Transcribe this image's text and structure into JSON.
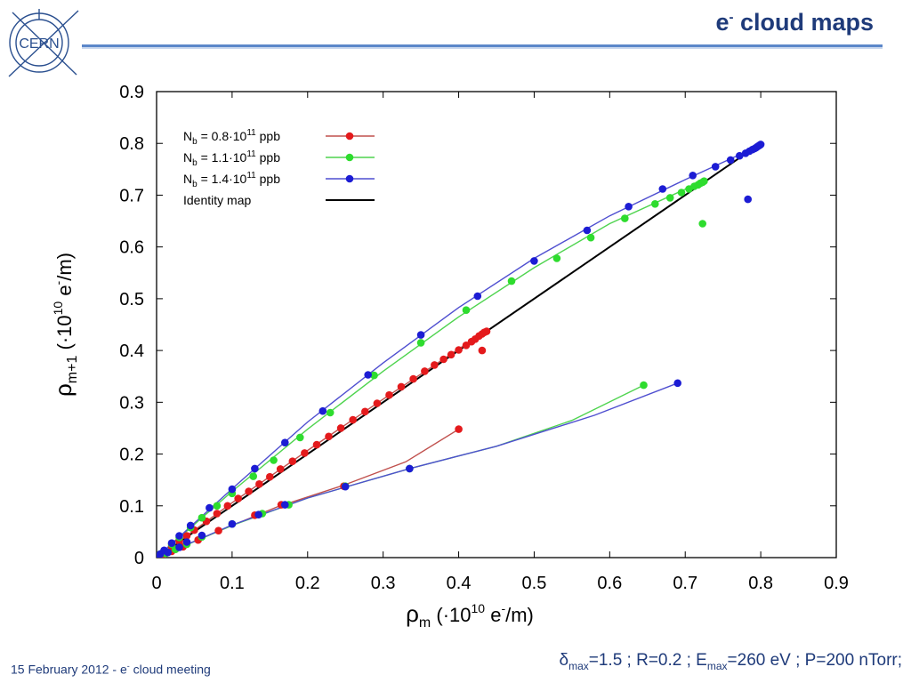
{
  "slide": {
    "logo_text": "CERN",
    "title_main": "e",
    "title_sup": "-",
    "title_rest": " cloud maps",
    "footer_date": "15 February 2012",
    "footer_sep": " - ",
    "footer_e": "e",
    "footer_sup": "-",
    "footer_rest": " cloud meeting",
    "params_delta": "δ",
    "params_sub1": "max",
    "params_mid": "=1.5 ; R=0.2 ; E",
    "params_sub2": "max",
    "params_end": "=260 eV ; P=200 nTorr;"
  },
  "colors": {
    "title": "#1f3b7a",
    "rule": "#5b87c9",
    "red": "#e41a1c",
    "green": "#2edc2e",
    "blue": "#1c1cd4",
    "fit_red": "#c0504d",
    "fit_green": "#4fd44f",
    "fit_blue": "#4f4fd0",
    "identity": "#000000"
  },
  "chart_data": {
    "type": "scatter",
    "title": "",
    "xlabel_rho": "ρ",
    "xlabel_sub": "m",
    "xlabel_rest": " (·10",
    "xlabel_sup": "10",
    "xlabel_unit": " e",
    "xlabel_unit_sup": "-",
    "xlabel_end": "/m)",
    "ylabel_rho": "ρ",
    "ylabel_sub": "m+1",
    "ylabel_rest": " (·10",
    "ylabel_sup": "10",
    "ylabel_unit": " e",
    "ylabel_unit_sup": "-",
    "ylabel_end": "/m)",
    "xlim": [
      0,
      0.9
    ],
    "ylim": [
      0,
      0.9
    ],
    "xticks": [
      "0",
      "0.1",
      "0.2",
      "0.3",
      "0.4",
      "0.5",
      "0.6",
      "0.7",
      "0.8",
      "0.9"
    ],
    "yticks": [
      "0",
      "0.1",
      "0.2",
      "0.3",
      "0.4",
      "0.5",
      "0.6",
      "0.7",
      "0.8",
      "0.9"
    ],
    "grid": false,
    "legend_position": "top-left",
    "series": [
      {
        "name_pre": "N",
        "name_sub": "b",
        "name_mid": " = 0.8·10",
        "name_sup": "11",
        "name_end": " ppb",
        "color_key": "red",
        "upper_points": [
          [
            0,
            0
          ],
          [
            0.005,
            0.006
          ],
          [
            0.01,
            0.011
          ],
          [
            0.02,
            0.022
          ],
          [
            0.03,
            0.032
          ],
          [
            0.04,
            0.042
          ],
          [
            0.05,
            0.053
          ],
          [
            0.066,
            0.07
          ],
          [
            0.08,
            0.085
          ],
          [
            0.094,
            0.1
          ],
          [
            0.108,
            0.114
          ],
          [
            0.122,
            0.128
          ],
          [
            0.136,
            0.142
          ],
          [
            0.15,
            0.156
          ],
          [
            0.164,
            0.171
          ],
          [
            0.18,
            0.186
          ],
          [
            0.196,
            0.202
          ],
          [
            0.212,
            0.218
          ],
          [
            0.228,
            0.234
          ],
          [
            0.244,
            0.25
          ],
          [
            0.26,
            0.266
          ],
          [
            0.276,
            0.282
          ],
          [
            0.292,
            0.298
          ],
          [
            0.308,
            0.314
          ],
          [
            0.324,
            0.33
          ],
          [
            0.34,
            0.345
          ],
          [
            0.355,
            0.36
          ],
          [
            0.368,
            0.372
          ],
          [
            0.38,
            0.383
          ],
          [
            0.39,
            0.392
          ],
          [
            0.4,
            0.401
          ],
          [
            0.41,
            0.41
          ],
          [
            0.417,
            0.417
          ],
          [
            0.422,
            0.422
          ],
          [
            0.427,
            0.428
          ],
          [
            0.431,
            0.432
          ],
          [
            0.434,
            0.435
          ],
          [
            0.437,
            0.437
          ],
          [
            0.431,
            0.4
          ]
        ],
        "lower_points": [
          [
            0,
            0
          ],
          [
            0.01,
            0.006
          ],
          [
            0.02,
            0.012
          ],
          [
            0.035,
            0.021
          ],
          [
            0.055,
            0.034
          ],
          [
            0.082,
            0.052
          ],
          [
            0.13,
            0.082
          ],
          [
            0.165,
            0.102
          ],
          [
            0.248,
            0.138
          ],
          [
            0.4,
            0.248
          ]
        ]
      },
      {
        "name_pre": "N",
        "name_sub": "b",
        "name_mid": " = 1.1·10",
        "name_sup": "11",
        "name_end": " ppb",
        "color_key": "green",
        "upper_points": [
          [
            0,
            0
          ],
          [
            0.005,
            0.007
          ],
          [
            0.01,
            0.013
          ],
          [
            0.02,
            0.026
          ],
          [
            0.03,
            0.039
          ],
          [
            0.045,
            0.058
          ],
          [
            0.06,
            0.077
          ],
          [
            0.08,
            0.1
          ],
          [
            0.1,
            0.124
          ],
          [
            0.128,
            0.157
          ],
          [
            0.155,
            0.188
          ],
          [
            0.19,
            0.232
          ],
          [
            0.23,
            0.28
          ],
          [
            0.288,
            0.352
          ],
          [
            0.35,
            0.415
          ],
          [
            0.41,
            0.478
          ],
          [
            0.47,
            0.534
          ],
          [
            0.53,
            0.578
          ],
          [
            0.575,
            0.618
          ],
          [
            0.62,
            0.655
          ],
          [
            0.66,
            0.683
          ],
          [
            0.68,
            0.695
          ],
          [
            0.695,
            0.705
          ],
          [
            0.705,
            0.712
          ],
          [
            0.712,
            0.717
          ],
          [
            0.717,
            0.72
          ],
          [
            0.72,
            0.723
          ],
          [
            0.723,
            0.725
          ],
          [
            0.725,
            0.727
          ],
          [
            0.723,
            0.645
          ]
        ],
        "lower_points": [
          [
            0,
            0
          ],
          [
            0.012,
            0.008
          ],
          [
            0.025,
            0.016
          ],
          [
            0.04,
            0.026
          ],
          [
            0.06,
            0.04
          ],
          [
            0.1,
            0.065
          ],
          [
            0.14,
            0.085
          ],
          [
            0.175,
            0.102
          ],
          [
            0.25,
            0.138
          ],
          [
            0.335,
            0.172
          ],
          [
            0.645,
            0.333
          ]
        ]
      },
      {
        "name_pre": "N",
        "name_sub": "b",
        "name_mid": " = 1.4·10",
        "name_sup": "11",
        "name_end": " ppb",
        "color_key": "blue",
        "upper_points": [
          [
            0,
            0
          ],
          [
            0.005,
            0.007
          ],
          [
            0.01,
            0.014
          ],
          [
            0.02,
            0.028
          ],
          [
            0.03,
            0.042
          ],
          [
            0.045,
            0.062
          ],
          [
            0.07,
            0.096
          ],
          [
            0.1,
            0.132
          ],
          [
            0.13,
            0.172
          ],
          [
            0.17,
            0.222
          ],
          [
            0.22,
            0.283
          ],
          [
            0.28,
            0.353
          ],
          [
            0.35,
            0.43
          ],
          [
            0.425,
            0.505
          ],
          [
            0.5,
            0.573
          ],
          [
            0.57,
            0.632
          ],
          [
            0.625,
            0.678
          ],
          [
            0.67,
            0.712
          ],
          [
            0.71,
            0.738
          ],
          [
            0.74,
            0.755
          ],
          [
            0.76,
            0.768
          ],
          [
            0.772,
            0.776
          ],
          [
            0.78,
            0.781
          ],
          [
            0.785,
            0.785
          ],
          [
            0.789,
            0.788
          ],
          [
            0.792,
            0.79
          ],
          [
            0.794,
            0.792
          ],
          [
            0.796,
            0.794
          ],
          [
            0.798,
            0.796
          ],
          [
            0.799,
            0.797
          ],
          [
            0.8,
            0.798
          ],
          [
            0.783,
            0.692
          ]
        ],
        "lower_points": [
          [
            0,
            0
          ],
          [
            0.015,
            0.01
          ],
          [
            0.03,
            0.02
          ],
          [
            0.04,
            0.03
          ],
          [
            0.06,
            0.043
          ],
          [
            0.1,
            0.065
          ],
          [
            0.135,
            0.083
          ],
          [
            0.17,
            0.102
          ],
          [
            0.25,
            0.137
          ],
          [
            0.335,
            0.172
          ],
          [
            0.69,
            0.337
          ]
        ]
      },
      {
        "name_pre": "Identity map",
        "name_sub": "",
        "name_mid": "",
        "name_sup": "",
        "name_end": "",
        "color_key": "identity",
        "upper_points": [
          [
            0,
            0
          ],
          [
            0.8,
            0.8
          ]
        ],
        "lower_points": []
      }
    ],
    "fit_lines": {
      "red_upper": [
        [
          0,
          0
        ],
        [
          0.1,
          0.106
        ],
        [
          0.2,
          0.207
        ],
        [
          0.3,
          0.306
        ],
        [
          0.4,
          0.403
        ],
        [
          0.437,
          0.437
        ]
      ],
      "red_lower": [
        [
          0,
          0
        ],
        [
          0.08,
          0.05
        ],
        [
          0.16,
          0.098
        ],
        [
          0.248,
          0.14
        ],
        [
          0.33,
          0.185
        ],
        [
          0.4,
          0.248
        ]
      ],
      "green_upper": [
        [
          0,
          0
        ],
        [
          0.1,
          0.128
        ],
        [
          0.2,
          0.248
        ],
        [
          0.3,
          0.36
        ],
        [
          0.4,
          0.465
        ],
        [
          0.5,
          0.56
        ],
        [
          0.6,
          0.645
        ],
        [
          0.725,
          0.728
        ]
      ],
      "green_lower": [
        [
          0,
          0
        ],
        [
          0.1,
          0.062
        ],
        [
          0.2,
          0.115
        ],
        [
          0.335,
          0.172
        ],
        [
          0.45,
          0.215
        ],
        [
          0.55,
          0.265
        ],
        [
          0.645,
          0.333
        ]
      ],
      "blue_upper": [
        [
          0,
          0
        ],
        [
          0.1,
          0.133
        ],
        [
          0.2,
          0.262
        ],
        [
          0.3,
          0.376
        ],
        [
          0.4,
          0.483
        ],
        [
          0.5,
          0.578
        ],
        [
          0.6,
          0.66
        ],
        [
          0.7,
          0.73
        ],
        [
          0.8,
          0.797
        ]
      ],
      "blue_lower": [
        [
          0,
          0
        ],
        [
          0.1,
          0.063
        ],
        [
          0.2,
          0.115
        ],
        [
          0.335,
          0.172
        ],
        [
          0.45,
          0.215
        ],
        [
          0.58,
          0.275
        ],
        [
          0.69,
          0.337
        ]
      ]
    }
  }
}
